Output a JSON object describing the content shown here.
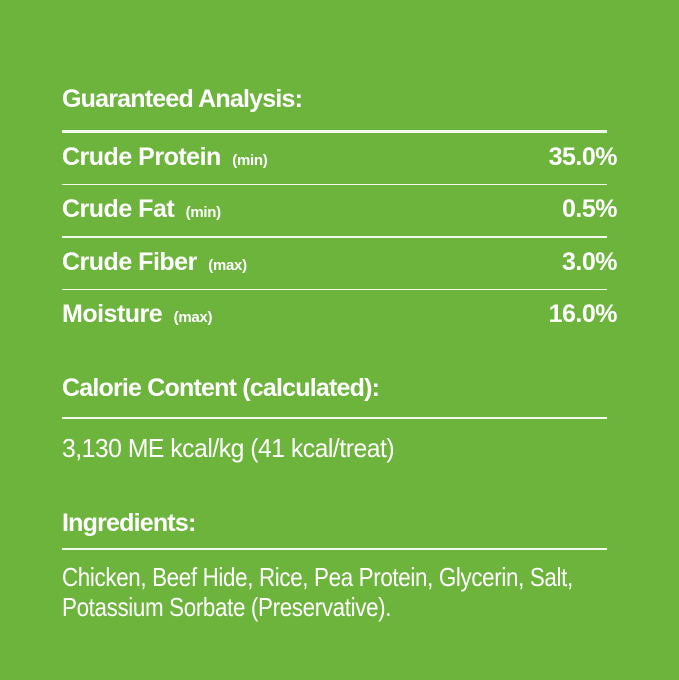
{
  "colors": {
    "background": "#6cb43c",
    "text": "#ffffff",
    "rule": "#f4f9ee"
  },
  "guaranteed_analysis": {
    "title": "Guaranteed Analysis:",
    "rows": [
      {
        "name": "Crude Protein",
        "qualifier": "(min)",
        "value": "35.0%"
      },
      {
        "name": "Crude Fat",
        "qualifier": "(min)",
        "value": "0.5%"
      },
      {
        "name": "Crude Fiber",
        "qualifier": "(max)",
        "value": "3.0%"
      },
      {
        "name": "Moisture",
        "qualifier": "(max)",
        "value": "16.0%"
      }
    ]
  },
  "calorie_content": {
    "title": "Calorie Content (calculated):",
    "value": "3,130 ME kcal/kg (41 kcal/treat)"
  },
  "ingredients": {
    "title": "Ingredients:",
    "lines": [
      "Chicken, Beef Hide, Rice, Pea Protein, Glycerin, Salt,",
      "Potassium Sorbate (Preservative)."
    ]
  }
}
